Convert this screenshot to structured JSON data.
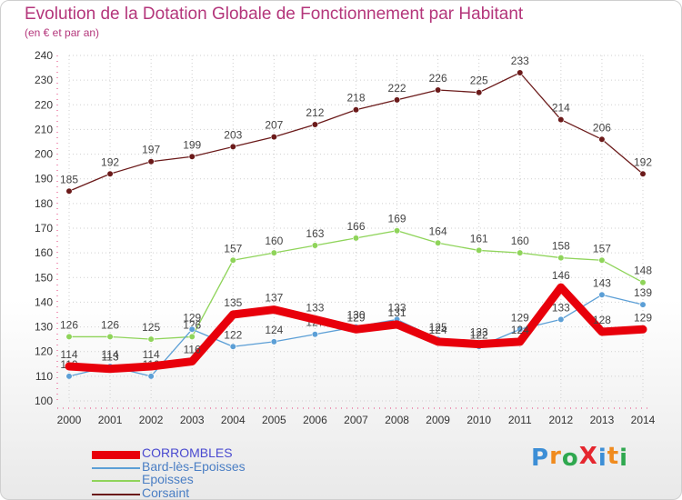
{
  "header": {
    "title": "Evolution de la Dotation Globale de Fonctionnement par Habitant",
    "subtitle": "(en € et par an)"
  },
  "logo": {
    "text": "ProXiti",
    "letters": [
      "P",
      "r",
      "o",
      "X",
      "i",
      "t",
      "i"
    ],
    "colors": [
      "#3c8ed6",
      "#f08b1e",
      "#2fa84f",
      "#e5262e",
      "#3c8ed6",
      "#f08b1e",
      "#2fa84f"
    ]
  },
  "colors": {
    "CORROMBLES": "#e8000b",
    "Bard-lès-Epoisses": "#5c9fd6",
    "Epoisses": "#8fd45a",
    "Corsaint": "#6b1a1a",
    "axis": "#e33c7a"
  },
  "chart_data": {
    "type": "line",
    "title": "Evolution de la Dotation Globale de Fonctionnement par Habitant",
    "subtitle": "(en € et par an)",
    "xlabel": "",
    "ylabel": "",
    "x": [
      "2000",
      "2001",
      "2002",
      "2003",
      "2004",
      "2005",
      "2006",
      "2007",
      "2008",
      "2009",
      "2010",
      "2011",
      "2012",
      "2013",
      "2014"
    ],
    "ylim": [
      100,
      240
    ],
    "yticks": [
      100,
      110,
      120,
      130,
      140,
      150,
      160,
      170,
      180,
      190,
      200,
      210,
      220,
      230,
      240
    ],
    "grid": "dotted",
    "legend_position": "bottom-left",
    "series": [
      {
        "name": "CORROMBLES",
        "values": [
          114,
          113,
          114,
          116,
          135,
          137,
          133,
          129,
          131,
          124,
          123,
          124,
          146,
          128,
          129
        ]
      },
      {
        "name": "Bard-lès-Epoisses",
        "values": [
          110,
          114,
          110,
          129,
          122,
          124,
          127,
          130,
          133,
          125,
          122,
          129,
          133,
          143,
          139
        ]
      },
      {
        "name": "Epoisses",
        "values": [
          126,
          126,
          125,
          126,
          157,
          160,
          163,
          166,
          169,
          164,
          161,
          160,
          158,
          157,
          148
        ]
      },
      {
        "name": "Corsaint",
        "values": [
          185,
          192,
          197,
          199,
          203,
          207,
          212,
          218,
          222,
          226,
          225,
          233,
          214,
          206,
          192
        ]
      }
    ]
  }
}
